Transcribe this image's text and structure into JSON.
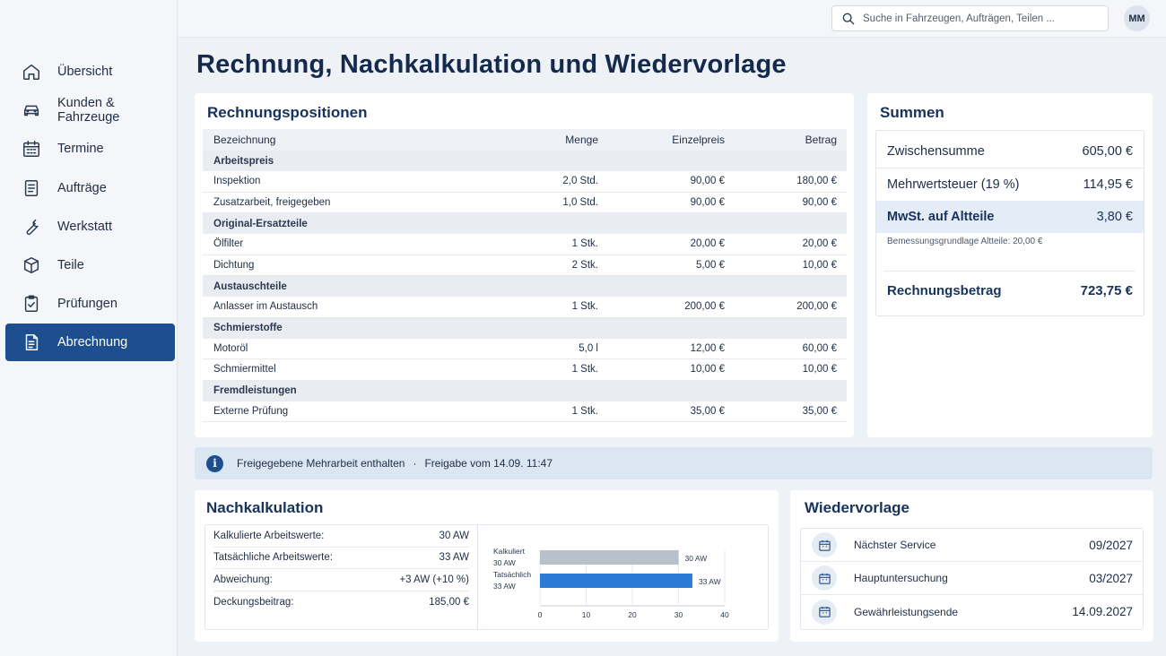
{
  "search": {
    "placeholder": "Suche in Fahrzeugen, Aufträgen, Teilen ..."
  },
  "user": {
    "initials": "MM"
  },
  "sidebar": {
    "items": [
      {
        "label": "Übersicht",
        "icon": "home-icon"
      },
      {
        "label": "Kunden & Fahrzeuge",
        "icon": "car-icon"
      },
      {
        "label": "Termine",
        "icon": "calendar-icon"
      },
      {
        "label": "Aufträge",
        "icon": "document-icon"
      },
      {
        "label": "Werkstatt",
        "icon": "wrench-icon"
      },
      {
        "label": "Teile",
        "icon": "box-icon"
      },
      {
        "label": "Prüfungen",
        "icon": "clipboard-check-icon"
      },
      {
        "label": "Abrechnung",
        "icon": "invoice-icon",
        "active": true
      }
    ]
  },
  "page": {
    "title": "Rechnung, Nachkalkulation und Wiedervorlage"
  },
  "positions": {
    "title": "Rechnungspositionen",
    "columns": {
      "name": "Bezeichnung",
      "qty": "Menge",
      "unit": "Einzelpreis",
      "amount": "Betrag"
    },
    "groups": [
      {
        "label": "Arbeitspreis",
        "rows": [
          {
            "name": "Inspektion",
            "qty": "2,0 Std.",
            "unit": "90,00 €",
            "amount": "180,00 €"
          },
          {
            "name": "Zusatzarbeit, freigegeben",
            "qty": "1,0 Std.",
            "unit": "90,00 €",
            "amount": "90,00 €"
          }
        ]
      },
      {
        "label": "Original-Ersatzteile",
        "rows": [
          {
            "name": "Ölfilter",
            "qty": "1 Stk.",
            "unit": "20,00 €",
            "amount": "20,00 €"
          },
          {
            "name": "Dichtung",
            "qty": "2 Stk.",
            "unit": "5,00 €",
            "amount": "10,00 €"
          }
        ]
      },
      {
        "label": "Austauschteile",
        "rows": [
          {
            "name": "Anlasser im Austausch",
            "qty": "1 Stk.",
            "unit": "200,00 €",
            "amount": "200,00 €"
          }
        ]
      },
      {
        "label": "Schmierstoffe",
        "rows": [
          {
            "name": "Motoröl",
            "qty": "5,0 l",
            "unit": "12,00 €",
            "amount": "60,00 €"
          },
          {
            "name": "Schmiermittel",
            "qty": "1 Stk.",
            "unit": "10,00 €",
            "amount": "10,00 €"
          }
        ]
      },
      {
        "label": "Fremdleistungen",
        "rows": [
          {
            "name": "Externe Prüfung",
            "qty": "1 Stk.",
            "unit": "35,00 €",
            "amount": "35,00 €"
          }
        ]
      }
    ]
  },
  "sums": {
    "title": "Summen",
    "subtotal_label": "Zwischensumme",
    "subtotal": "605,00 €",
    "vat_label": "Mehrwertsteuer (19 %)",
    "vat": "114,95 €",
    "oldparts_label": "MwSt. auf Altteile",
    "oldparts": "3,80 €",
    "oldparts_note": "Bemessungsgrundlage Altteile: 20,00 €",
    "total_label": "Rechnungsbetrag",
    "total": "723,75 €"
  },
  "banner": {
    "text": "Freigegebene Mehrarbeit enthalten",
    "separator": "·",
    "release": "Freigabe vom 14.09. 11:47"
  },
  "nachkalkulation": {
    "title": "Nachkalkulation",
    "rows": [
      {
        "label": "Kalkulierte Arbeitswerte:",
        "value": "30 AW"
      },
      {
        "label": "Tatsächliche Arbeitswerte:",
        "value": "33 AW"
      },
      {
        "label": "Abweichung:",
        "value": "+3 AW (+10 %)"
      },
      {
        "label": "Deckungsbeitrag:",
        "value": "185,00 €"
      }
    ]
  },
  "chart_data": {
    "type": "bar",
    "orientation": "horizontal",
    "categories": [
      "Kalkuliert",
      "Tatsächlich"
    ],
    "category_sublabels": [
      "30 AW",
      "33 AW"
    ],
    "values": [
      30,
      33
    ],
    "value_labels": [
      "30 AW",
      "33 AW"
    ],
    "bar_colors": [
      "#b8c0cc",
      "#2b7bd6"
    ],
    "xlim": [
      0,
      40
    ],
    "xticks": [
      0,
      10,
      20,
      30,
      40
    ],
    "grid": true
  },
  "wiedervorlage": {
    "title": "Wiedervorlage",
    "rows": [
      {
        "label": "Nächster Service",
        "date": "09/2027"
      },
      {
        "label": "Hauptuntersuchung",
        "date": "03/2027"
      },
      {
        "label": "Gewährleistungsende",
        "date": "14.09.2027"
      }
    ]
  }
}
